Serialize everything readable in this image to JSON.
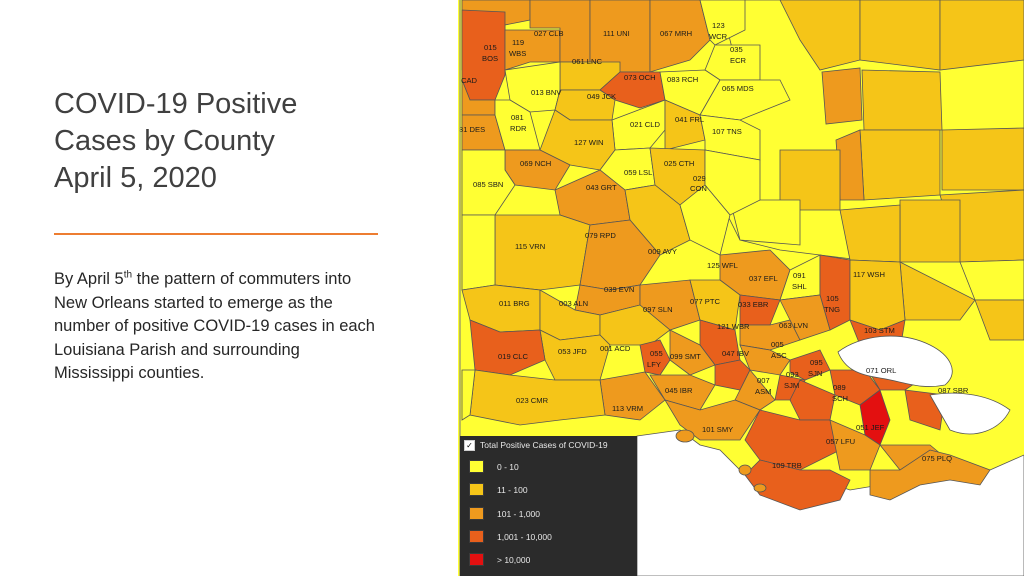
{
  "title_lines": [
    "COVID-19 Positive",
    "Cases by County",
    "April 5, 2020"
  ],
  "body": {
    "pre": "By April 5",
    "sup": "th",
    "post": " the pattern of commuters into New Orleans started to emerge as the number of positive COVID-19 cases in each Louisiana Parish and surrounding Mississippi counties."
  },
  "colors": {
    "accent_rule": "#ed7d31",
    "c1": "#ffff33",
    "c2": "#f5c518",
    "c3": "#ee9a1e",
    "c4": "#e8601c",
    "c5": "#e31010",
    "water": "#ffffff",
    "border": "#555555"
  },
  "legend": {
    "title": "Total Positive Cases of COVID-19",
    "items": [
      {
        "label": "0 - 10",
        "color": "#ffff33"
      },
      {
        "label": "11 - 100",
        "color": "#f5c518"
      },
      {
        "label": "101 - 1,000",
        "color": "#ee9a1e"
      },
      {
        "label": "1,001 - 10,000",
        "color": "#e8601c"
      },
      {
        "label": "> 10,000",
        "color": "#e31010"
      }
    ]
  },
  "parish_labels": [
    "027 CLB",
    "111 UNI",
    "067 MRH",
    "123",
    "WCR",
    "015",
    "BOS",
    "119",
    "WBS",
    "035",
    "ECR",
    "061 LNC",
    "073 OCH",
    "083 RCH",
    "065 MDS",
    "CAD",
    "013 BNV",
    "049 JCK",
    "081",
    "RDR",
    "021 CLD",
    "041 FRL",
    "107 TNS",
    "31 DES",
    "127 WIN",
    "069 NCH",
    "025 CTH",
    "059 LSL",
    "029",
    "CON",
    "085 SBN",
    "043 GRT",
    "079 RPD",
    "115 VRN",
    "009 AVY",
    "125 WFL",
    "037 EFL",
    "091",
    "SHL",
    "117 WSH",
    "039 EVN",
    "011 BRG",
    "003 ALN",
    "097 SLN",
    "077 PTC",
    "033 EBR",
    "105",
    "TNG",
    "121 WBR",
    "063 LVN",
    "103 STM",
    "005",
    "ASC",
    "001 ACD",
    "053 JFD",
    "055",
    "LFY",
    "099 SMT",
    "047 IBV",
    "095",
    "SJN",
    "019 CLC",
    "093",
    "SJM",
    "071 ORL",
    "007",
    "ASM",
    "045 IBR",
    "089",
    "SCH",
    "087 SBR",
    "023 CMR",
    "113 VRM",
    "051 JEF",
    "101 SMY",
    "057 LFU",
    "109 TRB",
    "075 PLQ"
  ]
}
